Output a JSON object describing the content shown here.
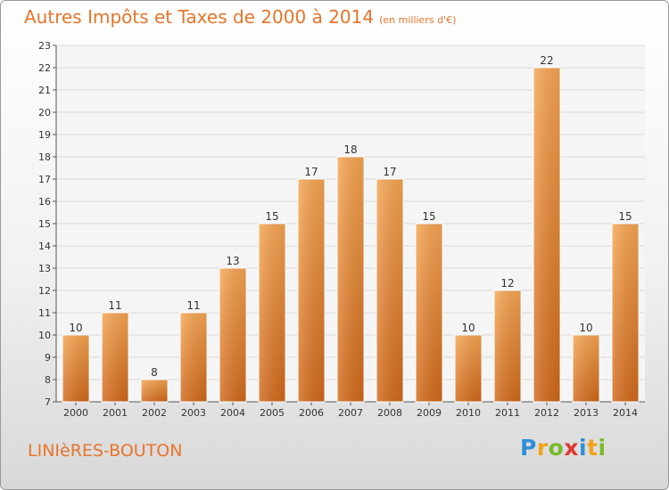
{
  "header": {
    "title": "Autres Impôts et Taxes de 2000 à 2014",
    "subtitle": "(en milliers d'€)"
  },
  "footer": {
    "commune": "LINIèRES-BOUTON",
    "logo_letters": [
      "P",
      "r",
      "o",
      "x",
      "i",
      "t",
      "i"
    ],
    "logo_colors": [
      "#2e8fd8",
      "#f2a21a",
      "#79b92a",
      "#e0352f",
      "#2e8fd8",
      "#f2a21a",
      "#79b92a"
    ]
  },
  "chart_data": {
    "type": "bar",
    "title": "Autres Impôts et Taxes de 2000 à 2014",
    "subtitle": "(en milliers d'€)",
    "categories": [
      "2000",
      "2001",
      "2002",
      "2003",
      "2004",
      "2005",
      "2006",
      "2007",
      "2008",
      "2009",
      "2010",
      "2011",
      "2012",
      "2013",
      "2014"
    ],
    "values": [
      10,
      11,
      8,
      11,
      13,
      15,
      17,
      18,
      17,
      15,
      10,
      12,
      22,
      10,
      15
    ],
    "ylim": [
      7,
      23
    ],
    "yticks": [
      7,
      8,
      9,
      10,
      11,
      12,
      13,
      14,
      15,
      16,
      17,
      18,
      19,
      20,
      21,
      22,
      23
    ],
    "grid": true,
    "bar_color": "#f0892f",
    "xlabel": "",
    "ylabel": ""
  }
}
